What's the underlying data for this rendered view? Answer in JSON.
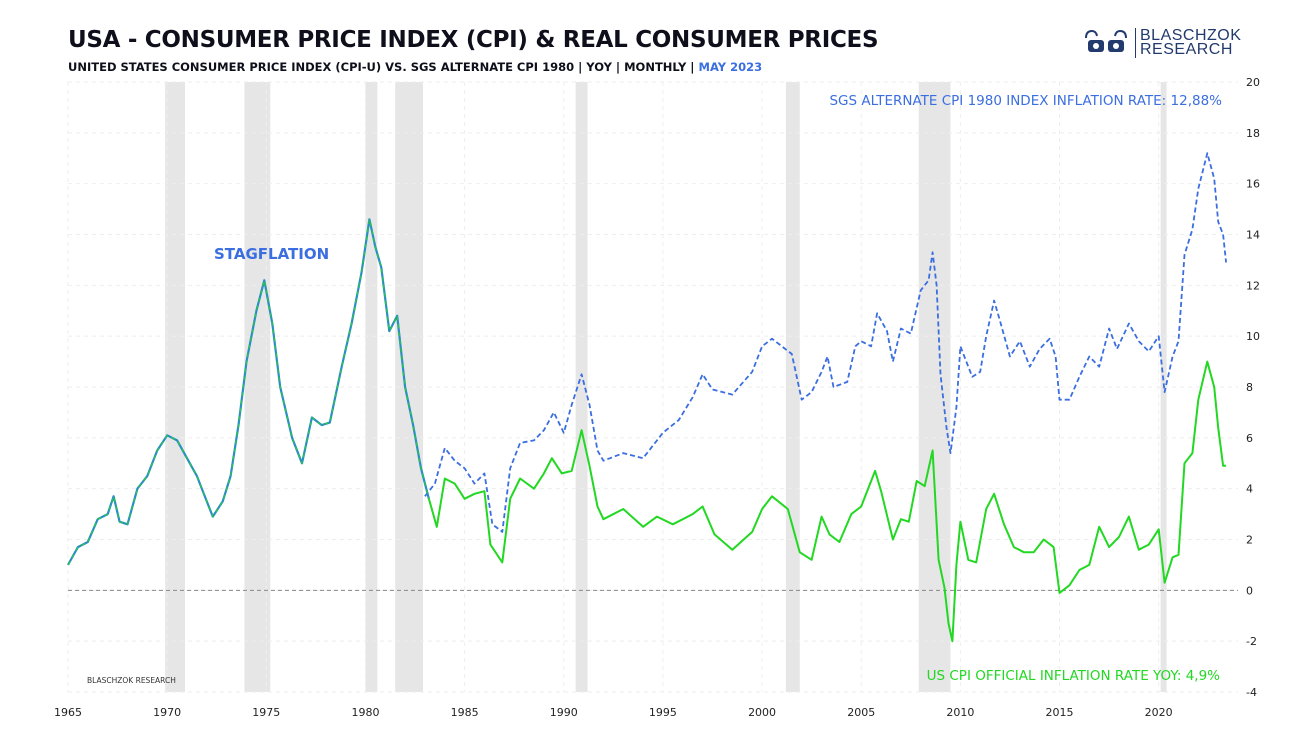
{
  "header": {
    "title": "USA - CONSUMER PRICE INDEX (CPI) & REAL CONSUMER PRICES",
    "subtitle_main": "UNITED STATES CONSUMER PRICE INDEX (CPI-U) VS. SGS ALTERNATE CPI 1980   | YOY | MONTHLY | ",
    "subtitle_date": "MAY 2023"
  },
  "logo": {
    "line1": "BLASCHZOK",
    "line2": "RESEARCH"
  },
  "watermark": "BLASCHZOK   RESEARCH",
  "annotations": {
    "sgs_label": "SGS ALTERNATE CPI 1980 INDEX INFLATION RATE: 12,88%",
    "cpi_label": "US CPI OFFICIAL INFLATION RATE YOY: 4,9%",
    "stagflation": "STAGFLATION"
  },
  "colors": {
    "sgs": "#3b6ee0",
    "cpi": "#22d822",
    "overlap": "#2a8fc0",
    "recession": "#e6e6e6",
    "zero_line": "#888888"
  },
  "chart_data": {
    "type": "line",
    "x_axis": {
      "range": [
        1965,
        2024
      ],
      "ticks": [
        1965,
        1970,
        1975,
        1980,
        1985,
        1990,
        1995,
        2000,
        2005,
        2010,
        2015,
        2020
      ]
    },
    "y_axis": {
      "range": [
        -4,
        20
      ],
      "ticks": [
        -4,
        -2,
        0,
        2,
        4,
        6,
        8,
        10,
        12,
        14,
        16,
        18,
        20
      ],
      "position": "right"
    },
    "grid": true,
    "recessions": [
      [
        1969.9,
        1970.9
      ],
      [
        1973.9,
        1975.2
      ],
      [
        1980.0,
        1980.6
      ],
      [
        1981.5,
        1982.9
      ],
      [
        1990.6,
        1991.2
      ],
      [
        2001.2,
        2001.9
      ],
      [
        2007.9,
        2009.5
      ],
      [
        2020.1,
        2020.4
      ]
    ],
    "series": [
      {
        "name": "SGS ALTERNATE CPI 1980 INDEX INFLATION RATE",
        "style": "dashed",
        "points": [
          [
            1983.0,
            3.7
          ],
          [
            1983.5,
            4.2
          ],
          [
            1984.0,
            5.6
          ],
          [
            1984.5,
            5.1
          ],
          [
            1985.0,
            4.8
          ],
          [
            1985.5,
            4.2
          ],
          [
            1986.0,
            4.6
          ],
          [
            1986.4,
            2.6
          ],
          [
            1986.9,
            2.3
          ],
          [
            1987.3,
            4.8
          ],
          [
            1987.8,
            5.8
          ],
          [
            1988.5,
            5.9
          ],
          [
            1989.0,
            6.3
          ],
          [
            1989.5,
            7.0
          ],
          [
            1990.0,
            6.2
          ],
          [
            1990.4,
            7.3
          ],
          [
            1990.9,
            8.5
          ],
          [
            1991.3,
            7.3
          ],
          [
            1991.7,
            5.5
          ],
          [
            1992.0,
            5.1
          ],
          [
            1993.0,
            5.4
          ],
          [
            1994.0,
            5.2
          ],
          [
            1994.5,
            5.7
          ],
          [
            1995.0,
            6.2
          ],
          [
            1995.8,
            6.7
          ],
          [
            1996.5,
            7.6
          ],
          [
            1997.0,
            8.5
          ],
          [
            1997.5,
            7.9
          ],
          [
            1998.5,
            7.7
          ],
          [
            1999.5,
            8.6
          ],
          [
            2000.0,
            9.6
          ],
          [
            2000.5,
            9.9
          ],
          [
            2001.5,
            9.3
          ],
          [
            2002.0,
            7.5
          ],
          [
            2002.5,
            7.8
          ],
          [
            2003.0,
            8.6
          ],
          [
            2003.3,
            9.2
          ],
          [
            2003.6,
            8.0
          ],
          [
            2004.3,
            8.2
          ],
          [
            2004.7,
            9.6
          ],
          [
            2005.0,
            9.8
          ],
          [
            2005.5,
            9.6
          ],
          [
            2005.8,
            10.9
          ],
          [
            2006.3,
            10.2
          ],
          [
            2006.6,
            9.0
          ],
          [
            2007.0,
            10.3
          ],
          [
            2007.5,
            10.1
          ],
          [
            2008.0,
            11.8
          ],
          [
            2008.4,
            12.2
          ],
          [
            2008.6,
            13.3
          ],
          [
            2008.8,
            12.0
          ],
          [
            2009.0,
            8.5
          ],
          [
            2009.3,
            6.4
          ],
          [
            2009.5,
            5.4
          ],
          [
            2009.8,
            7.2
          ],
          [
            2010.0,
            9.6
          ],
          [
            2010.3,
            9.0
          ],
          [
            2010.6,
            8.4
          ],
          [
            2011.0,
            8.6
          ],
          [
            2011.3,
            10.0
          ],
          [
            2011.7,
            11.4
          ],
          [
            2012.0,
            10.6
          ],
          [
            2012.5,
            9.2
          ],
          [
            2013.0,
            9.8
          ],
          [
            2013.5,
            8.8
          ],
          [
            2014.0,
            9.5
          ],
          [
            2014.5,
            9.9
          ],
          [
            2014.8,
            9.2
          ],
          [
            2015.0,
            7.5
          ],
          [
            2015.5,
            7.5
          ],
          [
            2016.0,
            8.4
          ],
          [
            2016.5,
            9.2
          ],
          [
            2017.0,
            8.8
          ],
          [
            2017.5,
            10.3
          ],
          [
            2017.9,
            9.5
          ],
          [
            2018.5,
            10.5
          ],
          [
            2019.0,
            9.8
          ],
          [
            2019.5,
            9.4
          ],
          [
            2020.0,
            10.0
          ],
          [
            2020.3,
            7.8
          ],
          [
            2020.7,
            9.2
          ],
          [
            2021.0,
            9.8
          ],
          [
            2021.3,
            13.2
          ],
          [
            2021.7,
            14.2
          ],
          [
            2022.0,
            15.8
          ],
          [
            2022.45,
            17.2
          ],
          [
            2022.8,
            16.2
          ],
          [
            2023.0,
            14.5
          ],
          [
            2023.25,
            14.0
          ],
          [
            2023.4,
            12.9
          ]
        ]
      },
      {
        "name": "US CPI OFFICIAL INFLATION RATE YOY",
        "style": "solid",
        "points": [
          [
            1965.0,
            1.0
          ],
          [
            1965.5,
            1.7
          ],
          [
            1966.0,
            1.9
          ],
          [
            1966.5,
            2.8
          ],
          [
            1967.0,
            3.0
          ],
          [
            1967.3,
            3.7
          ],
          [
            1967.6,
            2.7
          ],
          [
            1968.0,
            2.6
          ],
          [
            1968.5,
            4.0
          ],
          [
            1969.0,
            4.5
          ],
          [
            1969.5,
            5.5
          ],
          [
            1970.0,
            6.1
          ],
          [
            1970.5,
            5.9
          ],
          [
            1971.0,
            5.2
          ],
          [
            1971.5,
            4.5
          ],
          [
            1972.0,
            3.5
          ],
          [
            1972.3,
            2.9
          ],
          [
            1972.8,
            3.5
          ],
          [
            1973.2,
            4.5
          ],
          [
            1973.6,
            6.5
          ],
          [
            1974.0,
            9.0
          ],
          [
            1974.5,
            11.0
          ],
          [
            1974.9,
            12.2
          ],
          [
            1975.3,
            10.5
          ],
          [
            1975.7,
            8.0
          ],
          [
            1976.3,
            6.0
          ],
          [
            1976.8,
            5.0
          ],
          [
            1977.3,
            6.8
          ],
          [
            1977.8,
            6.5
          ],
          [
            1978.2,
            6.6
          ],
          [
            1978.8,
            8.8
          ],
          [
            1979.3,
            10.5
          ],
          [
            1979.8,
            12.5
          ],
          [
            1980.2,
            14.6
          ],
          [
            1980.5,
            13.5
          ],
          [
            1980.8,
            12.7
          ],
          [
            1981.2,
            10.2
          ],
          [
            1981.6,
            10.8
          ],
          [
            1982.0,
            8.0
          ],
          [
            1982.4,
            6.5
          ],
          [
            1982.8,
            4.8
          ],
          [
            1983.2,
            3.6
          ],
          [
            1983.6,
            2.5
          ],
          [
            1984.0,
            4.4
          ],
          [
            1984.5,
            4.2
          ],
          [
            1985.0,
            3.6
          ],
          [
            1985.5,
            3.8
          ],
          [
            1986.0,
            3.9
          ],
          [
            1986.3,
            1.8
          ],
          [
            1986.9,
            1.1
          ],
          [
            1987.3,
            3.6
          ],
          [
            1987.8,
            4.4
          ],
          [
            1988.5,
            4.0
          ],
          [
            1989.0,
            4.6
          ],
          [
            1989.4,
            5.2
          ],
          [
            1989.9,
            4.6
          ],
          [
            1990.4,
            4.7
          ],
          [
            1990.9,
            6.3
          ],
          [
            1991.3,
            4.9
          ],
          [
            1991.7,
            3.3
          ],
          [
            1992.0,
            2.8
          ],
          [
            1993.0,
            3.2
          ],
          [
            1994.0,
            2.5
          ],
          [
            1994.7,
            2.9
          ],
          [
            1995.5,
            2.6
          ],
          [
            1996.5,
            3.0
          ],
          [
            1997.0,
            3.3
          ],
          [
            1997.6,
            2.2
          ],
          [
            1998.5,
            1.6
          ],
          [
            1999.5,
            2.3
          ],
          [
            2000.0,
            3.2
          ],
          [
            2000.5,
            3.7
          ],
          [
            2001.3,
            3.2
          ],
          [
            2001.9,
            1.5
          ],
          [
            2002.5,
            1.2
          ],
          [
            2003.0,
            2.9
          ],
          [
            2003.4,
            2.2
          ],
          [
            2003.9,
            1.9
          ],
          [
            2004.5,
            3.0
          ],
          [
            2005.0,
            3.3
          ],
          [
            2005.7,
            4.7
          ],
          [
            2006.0,
            3.9
          ],
          [
            2006.6,
            2.0
          ],
          [
            2007.0,
            2.8
          ],
          [
            2007.4,
            2.7
          ],
          [
            2007.8,
            4.3
          ],
          [
            2008.2,
            4.1
          ],
          [
            2008.6,
            5.5
          ],
          [
            2008.9,
            1.2
          ],
          [
            2009.2,
            0.1
          ],
          [
            2009.4,
            -1.3
          ],
          [
            2009.6,
            -2.0
          ],
          [
            2009.8,
            1.0
          ],
          [
            2010.0,
            2.7
          ],
          [
            2010.4,
            1.2
          ],
          [
            2010.8,
            1.1
          ],
          [
            2011.3,
            3.2
          ],
          [
            2011.7,
            3.8
          ],
          [
            2012.2,
            2.6
          ],
          [
            2012.7,
            1.7
          ],
          [
            2013.2,
            1.5
          ],
          [
            2013.7,
            1.5
          ],
          [
            2014.2,
            2.0
          ],
          [
            2014.7,
            1.7
          ],
          [
            2015.0,
            -0.1
          ],
          [
            2015.5,
            0.2
          ],
          [
            2016.0,
            0.8
          ],
          [
            2016.5,
            1.0
          ],
          [
            2017.0,
            2.5
          ],
          [
            2017.5,
            1.7
          ],
          [
            2018.0,
            2.1
          ],
          [
            2018.5,
            2.9
          ],
          [
            2019.0,
            1.6
          ],
          [
            2019.5,
            1.8
          ],
          [
            2020.0,
            2.4
          ],
          [
            2020.3,
            0.3
          ],
          [
            2020.7,
            1.3
          ],
          [
            2021.0,
            1.4
          ],
          [
            2021.3,
            5.0
          ],
          [
            2021.7,
            5.4
          ],
          [
            2022.0,
            7.5
          ],
          [
            2022.45,
            9.0
          ],
          [
            2022.8,
            8.0
          ],
          [
            2023.0,
            6.4
          ],
          [
            2023.25,
            4.9
          ],
          [
            2023.4,
            4.9
          ]
        ]
      }
    ]
  }
}
